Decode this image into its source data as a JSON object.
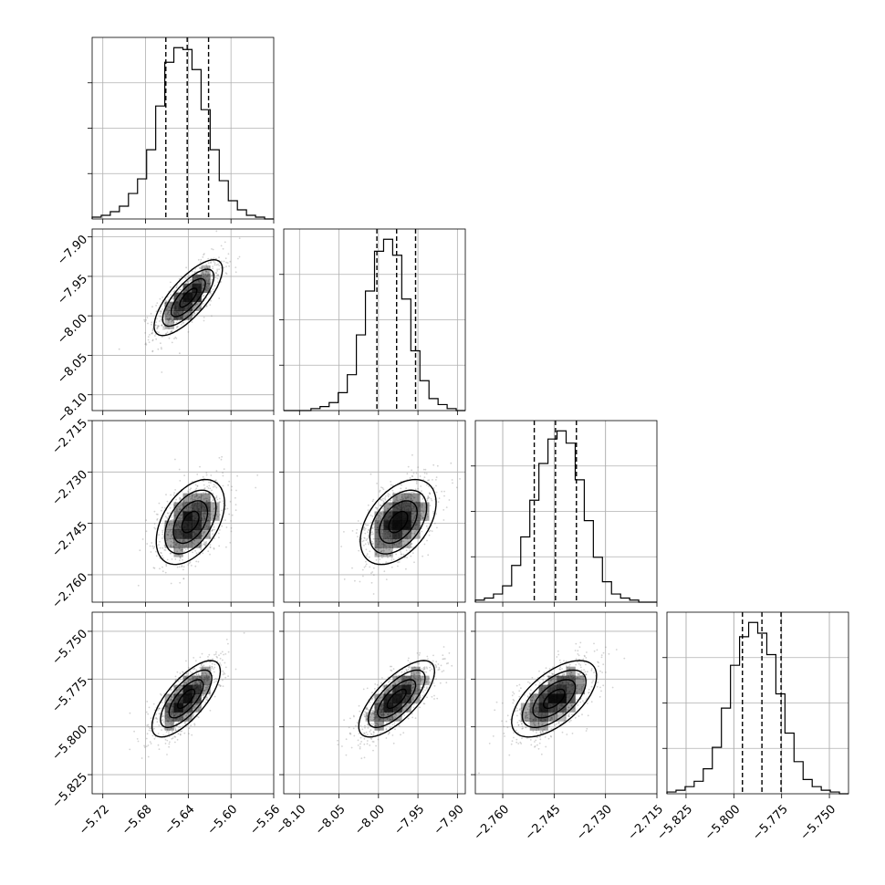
{
  "chart_data": {
    "type": "corner",
    "parameters": [
      {
        "range": [
          -5.73,
          -5.56
        ],
        "ticks": [
          "−5.72",
          "−5.68",
          "−5.64",
          "−5.60",
          "−5.56"
        ],
        "tick_values": [
          -5.72,
          -5.68,
          -5.64,
          -5.6,
          -5.56
        ],
        "quantiles": [
          -5.661,
          -5.641,
          -5.621
        ],
        "histogram": {
          "edges_start": -5.73,
          "edges_end": -5.56,
          "counts": [
            1,
            2,
            4,
            7,
            14,
            22,
            38,
            62,
            86,
            94,
            93,
            82,
            60,
            38,
            21,
            10,
            5,
            2,
            1,
            0
          ]
        }
      },
      {
        "range": [
          -8.12,
          -7.89
        ],
        "ticks": [
          "−8.10",
          "−8.05",
          "−8.00",
          "−7.95",
          "−7.90"
        ],
        "tick_values": [
          -8.1,
          -8.05,
          -8.0,
          -7.95,
          -7.9
        ],
        "quantiles": [
          -8.002,
          -7.977,
          -7.953
        ],
        "histogram": {
          "edges_start": -8.12,
          "edges_end": -7.89,
          "counts": [
            0,
            0,
            0,
            1,
            2,
            4,
            9,
            18,
            38,
            60,
            80,
            86,
            78,
            56,
            30,
            15,
            6,
            3,
            1,
            0
          ]
        }
      },
      {
        "range": [
          -2.768,
          -2.715
        ],
        "ticks": [
          "−2.715",
          "−2.730",
          "−2.745",
          "−2.760"
        ],
        "tick_values": [
          -2.715,
          -2.73,
          -2.745,
          -2.76
        ],
        "xticks": [
          "−2.760",
          "−2.745",
          "−2.730",
          "−2.715"
        ],
        "xtick_values": [
          -2.76,
          -2.745,
          -2.73,
          -2.715
        ],
        "quantiles": [
          -2.7508,
          -2.7446,
          -2.7385
        ],
        "histogram": {
          "edges_start": -2.768,
          "edges_end": -2.715,
          "counts": [
            1,
            2,
            4,
            8,
            18,
            32,
            50,
            68,
            80,
            84,
            78,
            60,
            40,
            22,
            10,
            4,
            2,
            1,
            0,
            0
          ]
        }
      },
      {
        "range": [
          -5.835,
          -5.74
        ],
        "ticks": [
          "−5.750",
          "−5.775",
          "−5.800",
          "−5.825"
        ],
        "tick_values": [
          -5.75,
          -5.775,
          -5.8,
          -5.825
        ],
        "xticks": [
          "−5.825",
          "−5.800",
          "−5.775",
          "−5.750"
        ],
        "xtick_values": [
          -5.825,
          -5.8,
          -5.775,
          -5.75
        ],
        "quantiles": [
          -5.7955,
          -5.7853,
          -5.7753
        ],
        "histogram": {
          "edges_start": -5.835,
          "edges_end": -5.74,
          "counts": [
            1,
            2,
            4,
            7,
            14,
            26,
            48,
            72,
            88,
            96,
            90,
            78,
            56,
            34,
            18,
            8,
            4,
            2,
            1,
            0
          ]
        }
      }
    ],
    "pairs": [
      {
        "row": 1,
        "col": 0,
        "center": [
          -5.64,
          -7.977
        ],
        "sd": [
          0.016,
          0.024
        ],
        "corr": 0.75
      },
      {
        "row": 2,
        "col": 0,
        "center": [
          -5.638,
          -2.7446
        ],
        "sd": [
          0.016,
          0.0062
        ],
        "corr": 0.45
      },
      {
        "row": 2,
        "col": 1,
        "center": [
          -7.975,
          -2.7446
        ],
        "sd": [
          0.024,
          0.0062
        ],
        "corr": 0.45
      },
      {
        "row": 3,
        "col": 0,
        "center": [
          -5.642,
          -5.7853
        ],
        "sd": [
          0.016,
          0.01
        ],
        "corr": 0.72
      },
      {
        "row": 3,
        "col": 1,
        "center": [
          -7.977,
          -5.7853
        ],
        "sd": [
          0.024,
          0.01
        ],
        "corr": 0.72
      },
      {
        "row": 3,
        "col": 2,
        "center": [
          -2.745,
          -5.7853
        ],
        "sd": [
          0.0062,
          0.01
        ],
        "corr": 0.6
      }
    ],
    "contour_levels_sigma": [
      0.5,
      1.0,
      1.5,
      2.0
    ],
    "grid": true,
    "colors": {
      "hist": "#000000",
      "points": "#808080",
      "grid": "#b0b0b0",
      "density": "#000000"
    }
  }
}
